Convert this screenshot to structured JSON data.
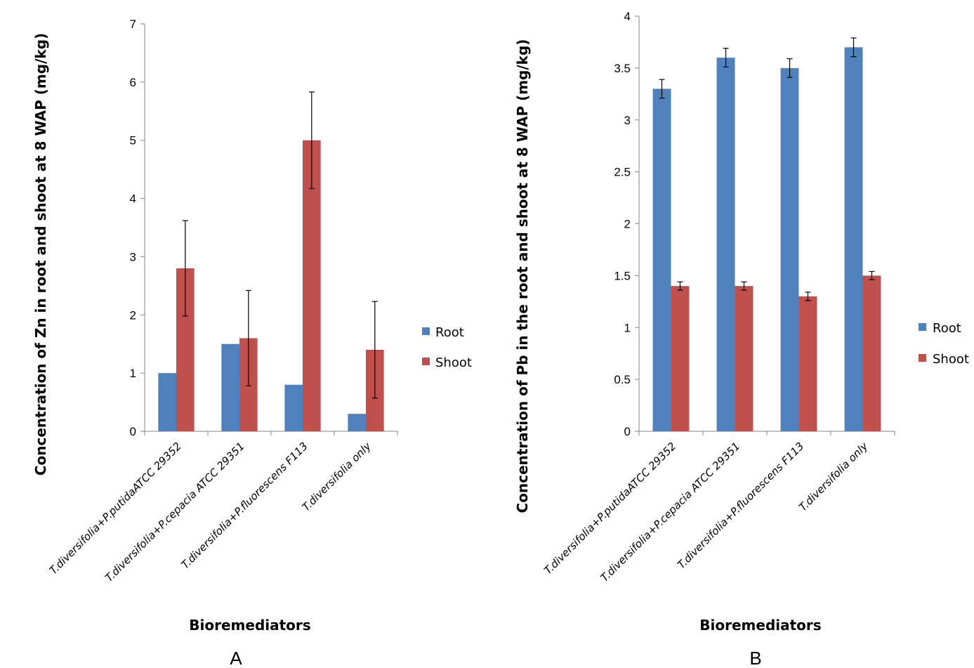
{
  "colors": {
    "root": "#4F81BD",
    "shoot": "#C0504D",
    "axis": "#868686"
  },
  "chart_data": [
    {
      "type": "bar",
      "panel": "A",
      "ylabel": "Concentration of Zn in root and shoot at 8 WAP (mg/kg)",
      "xlabel": "Bioremediators",
      "ylim": [
        0,
        7
      ],
      "yticks": [
        0,
        1,
        2,
        3,
        4,
        5,
        6,
        7
      ],
      "categories": [
        "T.diversifolia+P.putidaATCC 29352",
        "T.diversifolia+P.cepacia ATCC 29351",
        "T.diversifolia+P.fluorescens F113",
        "T.diversifolia only"
      ],
      "series": [
        {
          "name": "Root",
          "values": [
            1.0,
            1.5,
            0.8,
            0.3
          ]
        },
        {
          "name": "Shoot",
          "values": [
            2.8,
            1.6,
            5.0,
            1.4
          ],
          "errors": [
            0.82,
            0.82,
            0.83,
            0.83
          ]
        }
      ],
      "legend": "right"
    },
    {
      "type": "bar",
      "panel": "B",
      "ylabel": "Concentration of Pb in the root and shoot at 8 WAP (mg/kg)",
      "xlabel": "Bioremediators",
      "ylim": [
        0,
        4
      ],
      "yticks": [
        0,
        0.5,
        1,
        1.5,
        2,
        2.5,
        3,
        3.5,
        4
      ],
      "categories": [
        "T.diversifolia+P.putidaATCC 29352",
        "T.diversifolia+P.cepacia ATCC 29351",
        "T.diversifolia+P.fluorescens F113",
        "T.diversifolia only"
      ],
      "series": [
        {
          "name": "Root",
          "values": [
            3.3,
            3.6,
            3.5,
            3.7
          ],
          "errors": [
            0.09,
            0.09,
            0.09,
            0.09
          ]
        },
        {
          "name": "Shoot",
          "values": [
            1.4,
            1.4,
            1.3,
            1.5
          ],
          "errors": [
            0.04,
            0.04,
            0.04,
            0.04
          ]
        }
      ],
      "legend": "right"
    }
  ]
}
